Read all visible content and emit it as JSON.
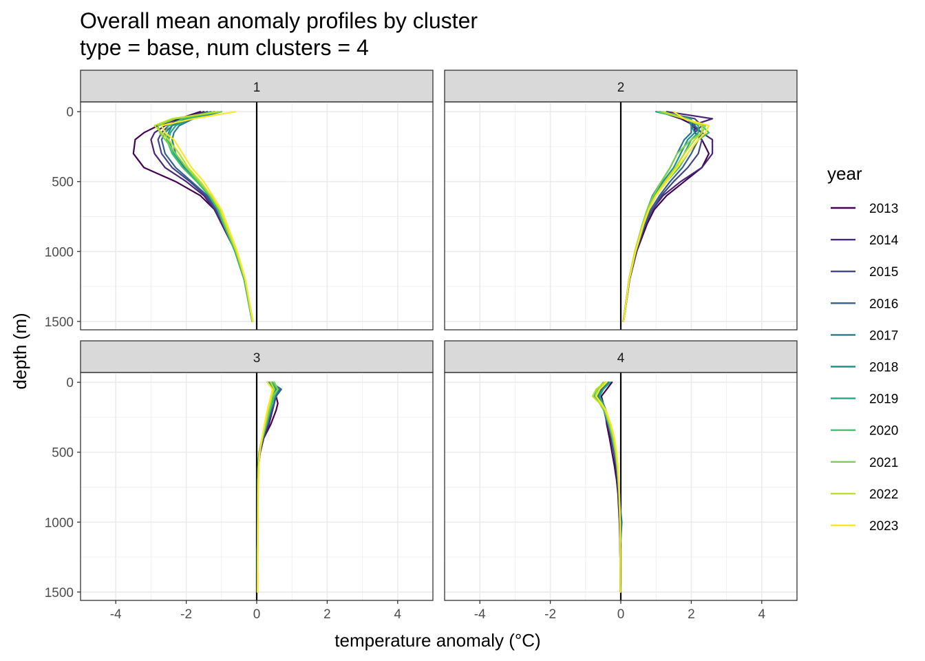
{
  "chart_data": {
    "type": "line",
    "title": "Overall mean anomaly profiles by cluster",
    "subtitle": "type = base, num clusters = 4",
    "xlabel": "temperature anomaly (°C)",
    "ylabel": "depth (m)",
    "xlim": [
      -5,
      5
    ],
    "ylim": [
      1560,
      -70
    ],
    "y_reversed": true,
    "x_ticks": [
      -4,
      -2,
      0,
      2,
      4
    ],
    "y_ticks": [
      0,
      500,
      1000,
      1500
    ],
    "grid": true,
    "reference_line_x": 0,
    "legend": {
      "title": "year",
      "placement": "right",
      "entries": [
        "2013",
        "2014",
        "2015",
        "2016",
        "2017",
        "2018",
        "2019",
        "2020",
        "2021",
        "2022",
        "2023"
      ]
    },
    "colors": [
      "#440154",
      "#482576",
      "#414487",
      "#35608D",
      "#2A788E",
      "#21908C",
      "#22A884",
      "#43BF71",
      "#7AD151",
      "#BBDF27",
      "#FDE725"
    ],
    "depths": [
      0,
      50,
      100,
      150,
      200,
      300,
      400,
      500,
      600,
      700,
      800,
      1000,
      1200,
      1500
    ],
    "panels": [
      {
        "label": "1",
        "series": [
          {
            "name": "2013",
            "values": [
              -1.6,
              -2.2,
              -2.8,
              -3.2,
              -3.45,
              -3.5,
              -3.2,
              -2.3,
              -1.6,
              -1.2,
              -1.0,
              -0.6,
              -0.35,
              -0.12
            ]
          },
          {
            "name": "2014",
            "values": [
              -1.5,
              -2.1,
              -2.6,
              -2.9,
              -3.0,
              -2.9,
              -2.6,
              -2.0,
              -1.5,
              -1.2,
              -1.0,
              -0.6,
              -0.35,
              -0.12
            ]
          },
          {
            "name": "2015",
            "values": [
              -1.4,
              -2.0,
              -2.5,
              -2.7,
              -2.8,
              -2.7,
              -2.4,
              -1.9,
              -1.45,
              -1.15,
              -0.95,
              -0.58,
              -0.33,
              -0.11
            ]
          },
          {
            "name": "2016",
            "values": [
              -1.2,
              -1.9,
              -2.4,
              -2.6,
              -2.7,
              -2.6,
              -2.3,
              -1.85,
              -1.4,
              -1.15,
              -0.95,
              -0.6,
              -0.35,
              -0.12
            ]
          },
          {
            "name": "2017",
            "values": [
              -1.0,
              -1.8,
              -2.2,
              -2.35,
              -2.4,
              -2.3,
              -2.05,
              -1.65,
              -1.3,
              -1.1,
              -0.95,
              -0.6,
              -0.35,
              -0.12
            ]
          },
          {
            "name": "2018",
            "values": [
              -1.3,
              -2.0,
              -2.4,
              -2.5,
              -2.55,
              -2.4,
              -2.1,
              -1.7,
              -1.35,
              -1.1,
              -0.95,
              -0.6,
              -0.35,
              -0.12
            ]
          },
          {
            "name": "2019",
            "values": [
              -1.1,
              -1.9,
              -2.3,
              -2.45,
              -2.5,
              -2.35,
              -2.1,
              -1.7,
              -1.35,
              -1.1,
              -0.95,
              -0.62,
              -0.36,
              -0.13
            ]
          },
          {
            "name": "2020",
            "values": [
              -1.2,
              -2.1,
              -2.5,
              -2.6,
              -2.55,
              -2.4,
              -2.1,
              -1.7,
              -1.35,
              -1.1,
              -0.95,
              -0.6,
              -0.35,
              -0.12
            ]
          },
          {
            "name": "2021",
            "values": [
              -1.0,
              -2.3,
              -2.8,
              -2.75,
              -2.6,
              -2.3,
              -2.0,
              -1.65,
              -1.3,
              -1.05,
              -0.9,
              -0.58,
              -0.33,
              -0.12
            ]
          },
          {
            "name": "2022",
            "values": [
              -1.1,
              -2.4,
              -2.9,
              -2.7,
              -2.5,
              -2.2,
              -1.95,
              -1.6,
              -1.3,
              -1.05,
              -0.9,
              -0.58,
              -0.33,
              -0.12
            ]
          },
          {
            "name": "2023",
            "values": [
              -0.6,
              -1.8,
              -2.7,
              -2.6,
              -2.35,
              -2.1,
              -1.85,
              -1.5,
              -1.25,
              -1.0,
              -0.85,
              -0.55,
              -0.32,
              -0.11
            ]
          }
        ]
      },
      {
        "label": "2",
        "series": [
          {
            "name": "2013",
            "values": [
              1.1,
              1.7,
              2.1,
              2.1,
              2.3,
              2.5,
              2.3,
              1.8,
              1.3,
              0.95,
              0.75,
              0.45,
              0.25,
              0.08
            ]
          },
          {
            "name": "2014",
            "values": [
              1.3,
              2.6,
              2.0,
              2.3,
              2.6,
              2.6,
              2.3,
              1.7,
              1.2,
              0.9,
              0.7,
              0.45,
              0.25,
              0.08
            ]
          },
          {
            "name": "2015",
            "values": [
              1.1,
              2.1,
              2.3,
              2.1,
              2.3,
              2.2,
              1.9,
              1.5,
              1.15,
              0.9,
              0.7,
              0.43,
              0.24,
              0.08
            ]
          },
          {
            "name": "2016",
            "values": [
              1.0,
              1.9,
              2.1,
              2.3,
              2.2,
              2.0,
              1.75,
              1.4,
              1.1,
              0.85,
              0.68,
              0.42,
              0.24,
              0.08
            ]
          },
          {
            "name": "2017",
            "values": [
              1.1,
              1.9,
              2.0,
              2.0,
              1.8,
              1.6,
              1.4,
              1.15,
              0.9,
              0.75,
              0.62,
              0.4,
              0.23,
              0.07
            ]
          },
          {
            "name": "2018",
            "values": [
              1.0,
              2.0,
              2.0,
              2.1,
              1.9,
              1.7,
              1.5,
              1.2,
              0.95,
              0.78,
              0.64,
              0.41,
              0.24,
              0.08
            ]
          },
          {
            "name": "2019",
            "values": [
              1.0,
              1.9,
              2.2,
              2.2,
              2.0,
              1.8,
              1.55,
              1.25,
              1.0,
              0.8,
              0.65,
              0.42,
              0.24,
              0.08
            ]
          },
          {
            "name": "2020",
            "values": [
              1.2,
              1.9,
              2.3,
              2.5,
              2.2,
              1.9,
              1.65,
              1.3,
              1.0,
              0.8,
              0.66,
              0.42,
              0.24,
              0.08
            ]
          },
          {
            "name": "2021",
            "values": [
              1.1,
              1.8,
              2.4,
              2.3,
              2.0,
              1.6,
              1.4,
              1.15,
              0.92,
              0.75,
              0.62,
              0.4,
              0.23,
              0.08
            ]
          },
          {
            "name": "2022",
            "values": [
              1.2,
              1.8,
              2.3,
              2.3,
              2.1,
              1.8,
              1.55,
              1.25,
              0.98,
              0.78,
              0.63,
              0.4,
              0.23,
              0.08
            ]
          },
          {
            "name": "2023",
            "values": [
              1.5,
              1.8,
              2.5,
              2.4,
              2.2,
              1.9,
              1.6,
              1.3,
              1.0,
              0.8,
              0.65,
              0.42,
              0.24,
              0.08
            ]
          }
        ]
      },
      {
        "label": "3",
        "series": [
          {
            "name": "2013",
            "values": [
              0.3,
              0.5,
              0.55,
              0.6,
              0.55,
              0.4,
              0.2,
              0.1,
              0.05,
              0.03,
              0.03,
              0.03,
              0.02,
              0.02
            ]
          },
          {
            "name": "2014",
            "values": [
              0.4,
              0.55,
              0.5,
              0.5,
              0.45,
              0.35,
              0.2,
              0.1,
              0.05,
              0.03,
              0.03,
              0.03,
              0.02,
              0.02
            ]
          },
          {
            "name": "2015",
            "values": [
              0.35,
              0.5,
              0.45,
              0.45,
              0.4,
              0.3,
              0.18,
              0.08,
              0.04,
              0.03,
              0.03,
              0.03,
              0.02,
              0.02
            ]
          },
          {
            "name": "2016",
            "values": [
              0.4,
              0.7,
              0.55,
              0.5,
              0.42,
              0.3,
              0.18,
              0.08,
              0.04,
              0.03,
              0.03,
              0.03,
              0.02,
              0.02
            ]
          },
          {
            "name": "2017",
            "values": [
              0.45,
              0.65,
              0.5,
              0.45,
              0.38,
              0.28,
              0.16,
              0.07,
              0.04,
              0.03,
              0.03,
              0.03,
              0.02,
              0.02
            ]
          },
          {
            "name": "2018",
            "values": [
              0.4,
              0.55,
              0.45,
              0.42,
              0.36,
              0.27,
              0.16,
              0.07,
              0.04,
              0.03,
              0.03,
              0.03,
              0.02,
              0.02
            ]
          },
          {
            "name": "2019",
            "values": [
              0.35,
              0.5,
              0.4,
              0.38,
              0.34,
              0.25,
              0.15,
              0.07,
              0.04,
              0.03,
              0.03,
              0.03,
              0.02,
              0.02
            ]
          },
          {
            "name": "2020",
            "values": [
              0.45,
              0.6,
              0.5,
              0.45,
              0.38,
              0.28,
              0.17,
              0.08,
              0.05,
              0.04,
              0.03,
              0.03,
              0.02,
              0.02
            ]
          },
          {
            "name": "2021",
            "values": [
              0.5,
              0.6,
              0.45,
              0.4,
              0.35,
              0.25,
              0.15,
              0.08,
              0.05,
              0.04,
              0.04,
              0.03,
              0.03,
              0.02
            ]
          },
          {
            "name": "2022",
            "values": [
              0.4,
              0.5,
              0.42,
              0.38,
              0.32,
              0.24,
              0.15,
              0.08,
              0.05,
              0.04,
              0.04,
              0.03,
              0.03,
              0.02
            ]
          },
          {
            "name": "2023",
            "values": [
              0.3,
              0.45,
              0.4,
              0.35,
              0.3,
              0.22,
              0.15,
              0.09,
              0.06,
              0.05,
              0.04,
              0.04,
              0.03,
              0.03
            ]
          }
        ]
      },
      {
        "label": "4",
        "series": [
          {
            "name": "2013",
            "values": [
              -0.25,
              -0.4,
              -0.55,
              -0.5,
              -0.45,
              -0.4,
              -0.32,
              -0.25,
              -0.18,
              -0.12,
              -0.08,
              -0.04,
              -0.02,
              -0.01
            ]
          },
          {
            "name": "2014",
            "values": [
              -0.3,
              -0.5,
              -0.6,
              -0.55,
              -0.48,
              -0.38,
              -0.28,
              -0.2,
              -0.14,
              -0.1,
              -0.07,
              -0.03,
              -0.02,
              -0.01
            ]
          },
          {
            "name": "2015",
            "values": [
              -0.35,
              -0.55,
              -0.65,
              -0.55,
              -0.45,
              -0.35,
              -0.25,
              -0.18,
              -0.12,
              -0.08,
              -0.06,
              -0.03,
              -0.02,
              -0.01
            ]
          },
          {
            "name": "2016",
            "values": [
              -0.3,
              -0.55,
              -0.7,
              -0.6,
              -0.48,
              -0.36,
              -0.26,
              -0.18,
              -0.12,
              -0.08,
              -0.06,
              0.02,
              -0.02,
              -0.01
            ]
          },
          {
            "name": "2017",
            "values": [
              -0.35,
              -0.6,
              -0.65,
              -0.55,
              -0.45,
              -0.33,
              -0.24,
              -0.16,
              -0.11,
              -0.08,
              -0.05,
              0.03,
              -0.02,
              -0.01
            ]
          },
          {
            "name": "2018",
            "values": [
              -0.4,
              -0.6,
              -0.6,
              -0.5,
              -0.42,
              -0.3,
              -0.22,
              -0.15,
              -0.1,
              -0.07,
              -0.05,
              -0.02,
              -0.02,
              -0.01
            ]
          },
          {
            "name": "2019",
            "values": [
              -0.3,
              -0.5,
              -0.6,
              -0.52,
              -0.43,
              -0.3,
              -0.22,
              -0.15,
              -0.1,
              -0.07,
              -0.05,
              -0.02,
              -0.02,
              -0.01
            ]
          },
          {
            "name": "2020",
            "values": [
              -0.4,
              -0.7,
              -0.75,
              -0.6,
              -0.48,
              -0.34,
              -0.24,
              -0.16,
              -0.11,
              -0.07,
              -0.05,
              -0.02,
              -0.02,
              -0.01
            ]
          },
          {
            "name": "2021",
            "values": [
              -0.5,
              -0.65,
              -0.7,
              -0.55,
              -0.45,
              -0.32,
              -0.22,
              -0.15,
              -0.1,
              -0.07,
              -0.05,
              -0.02,
              -0.02,
              -0.01
            ]
          },
          {
            "name": "2022",
            "values": [
              -0.45,
              -0.7,
              -0.8,
              -0.6,
              -0.45,
              -0.3,
              -0.2,
              -0.13,
              -0.09,
              -0.06,
              -0.04,
              -0.02,
              -0.01,
              -0.01
            ]
          },
          {
            "name": "2023",
            "values": [
              -0.4,
              -0.6,
              -0.7,
              -0.55,
              -0.42,
              -0.28,
              -0.18,
              -0.12,
              -0.08,
              -0.06,
              -0.04,
              -0.02,
              -0.01,
              -0.01
            ]
          }
        ]
      }
    ]
  }
}
